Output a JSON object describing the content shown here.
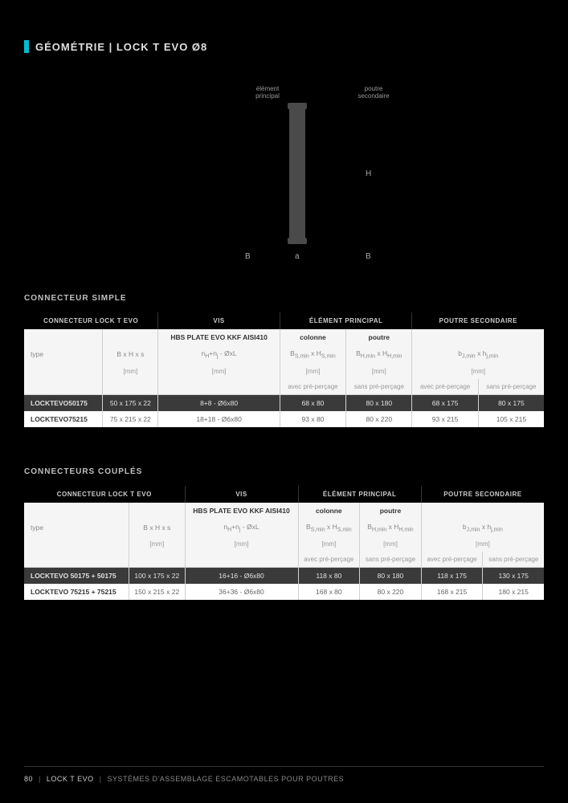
{
  "page": {
    "title": "GÉOMÉTRIE | LOCK T EVO Ø8",
    "footer_page": "80",
    "footer_product": "LOCK T EVO",
    "footer_category": "SYSTÈMES D'ASSEMBLAGE ESCAMOTABLES POUR POUTRES"
  },
  "diagram": {
    "label_principal": "élément principal",
    "label_secondaire": "poutre secondaire",
    "dim_H": "H",
    "dim_B_left": "B",
    "dim_a": "a",
    "dim_B_right": "B"
  },
  "table_simple": {
    "title": "CONNECTEUR SIMPLE",
    "headers": {
      "connecteur": "CONNECTEUR LOCK T EVO",
      "vis": "VIS",
      "element": "ÉLÉMENT PRINCIPAL",
      "poutre": "POUTRE SECONDAIRE"
    },
    "subheaders": {
      "hbs": "HBS PLATE EVO KKF AISI410",
      "colonne": "colonne",
      "poutre": "poutre"
    },
    "labels": {
      "type": "type",
      "bxhxs": "B x H x s",
      "vis_formula": "nH+nj - ØxL",
      "bs": "BS,min x HS,min",
      "bh": "BH,min x HH,min",
      "bj": "bJ,min x hj,min",
      "mm": "[mm]",
      "avec": "avec pré-perçage",
      "sans": "sans pré-perçage"
    },
    "rows": [
      {
        "type": "LOCKTEVO50175",
        "bxhxs": "50 x 175 x 22",
        "vis": "8+8 - Ø6x80",
        "colonne": "68 x 80",
        "poutre": "80 x 180",
        "sec_avec": "68 x 175",
        "sec_sans": "80 x 175"
      },
      {
        "type": "LOCKTEVO75215",
        "bxhxs": "75 x 215 x 22",
        "vis": "18+18 - Ø6x80",
        "colonne": "93 x 80",
        "poutre": "80 x 220",
        "sec_avec": "93 x 215",
        "sec_sans": "105 x 215"
      }
    ]
  },
  "table_coupled": {
    "title": "CONNECTEURS COUPLÉS",
    "rows": [
      {
        "type": "LOCKTEVO 50175 + 50175",
        "bxhxs": "100 x 175 x 22",
        "vis": "16+16 - Ø6x80",
        "colonne": "118 x 80",
        "poutre": "80 x 180",
        "sec_avec": "118 x 175",
        "sec_sans": "130 x 175"
      },
      {
        "type": "LOCKTEVO 75215 + 75215",
        "bxhxs": "150 x 215 x 22",
        "vis": "36+36 - Ø6x80",
        "colonne": "168 x 80",
        "poutre": "80 x 220",
        "sec_avec": "168 x 215",
        "sec_sans": "180 x 215"
      }
    ]
  }
}
